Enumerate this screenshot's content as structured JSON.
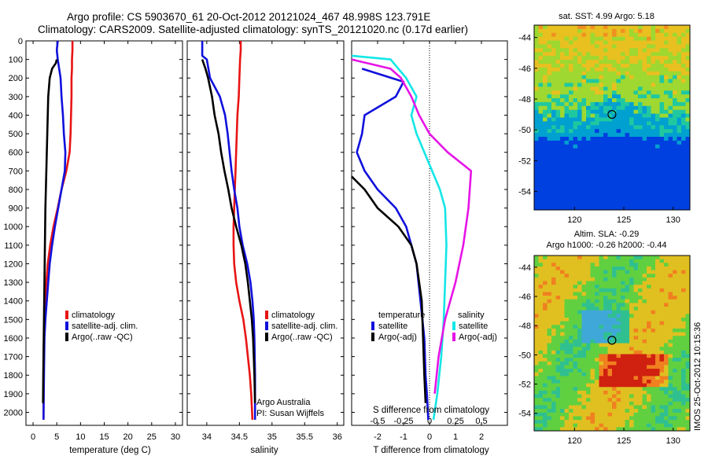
{
  "header": {
    "line1": "Argo profile: CS 5903670_61 20-Oct-2012 20121024_467 48.998S 123.791E",
    "line2": "Climatology: CARS2009. Satellite-adjusted climatology: synTS_20121020.nc (0.17d earlier)"
  },
  "side_text": "IMOS 25-Oct-2012 10:15:36",
  "colors": {
    "climatology": "#e81414",
    "satellite": "#1010dc",
    "argo": "#000000",
    "sal_satellite": "#14e6e6",
    "sal_argo": "#e614e6"
  },
  "chart_data": [
    {
      "id": "temperature",
      "type": "line",
      "xlabel": "temperature (deg C)",
      "ylabel": "",
      "xlim": [
        -1.5,
        31.5
      ],
      "ylim": [
        2070,
        0
      ],
      "xticks": [
        0,
        5,
        10,
        15,
        20,
        25,
        30
      ],
      "yticks": [
        0,
        100,
        200,
        300,
        400,
        500,
        600,
        700,
        800,
        900,
        1000,
        1100,
        1200,
        1300,
        1400,
        1500,
        1600,
        1700,
        1800,
        1900,
        2000
      ],
      "legend": [
        "climatology",
        "satellite-adj. clim.",
        "Argo(..raw -QC)"
      ],
      "series": [
        {
          "name": "climatology",
          "color": "#e81414",
          "x": [
            8.3,
            8.3,
            8.2,
            8.2,
            8.1,
            8.1,
            8.0,
            7.9,
            7.7,
            7.0,
            6.0,
            5.2,
            4.3,
            3.6,
            3.1,
            2.8,
            2.6,
            2.4,
            2.3,
            2.2,
            2.2,
            2.2
          ],
          "y": [
            0,
            50,
            100,
            150,
            200,
            300,
            400,
            500,
            600,
            700,
            800,
            900,
            1000,
            1100,
            1200,
            1300,
            1400,
            1500,
            1600,
            1700,
            1900,
            2040
          ]
        },
        {
          "name": "satellite-adj. clim.",
          "color": "#1010dc",
          "x": [
            5.2,
            5.0,
            5.2,
            5.5,
            5.8,
            6.0,
            6.3,
            6.5,
            6.8,
            6.7,
            6.0,
            5.3,
            4.6,
            4.0,
            3.5,
            3.2,
            2.9,
            2.6,
            2.4,
            2.3,
            2.2
          ],
          "y": [
            0,
            50,
            100,
            150,
            200,
            300,
            400,
            500,
            600,
            700,
            800,
            900,
            1000,
            1100,
            1200,
            1300,
            1400,
            1500,
            1600,
            1800,
            2040
          ]
        },
        {
          "name": "Argo(..raw -QC)",
          "color": "#000000",
          "x": [
            5.0,
            4.8,
            4.0,
            3.5,
            3.2,
            3.1,
            3.0,
            2.9,
            2.8,
            2.7,
            2.6,
            2.55,
            2.5,
            2.45,
            2.4,
            2.35,
            2.3,
            2.25,
            2.2,
            2.15,
            2.1
          ],
          "y": [
            100,
            120,
            150,
            200,
            300,
            400,
            500,
            600,
            700,
            800,
            900,
            1000,
            1100,
            1200,
            1300,
            1400,
            1500,
            1600,
            1700,
            1800,
            1950
          ]
        }
      ]
    },
    {
      "id": "salinity",
      "type": "line",
      "xlabel": "salinity",
      "ylabel": "",
      "xlim": [
        33.7,
        36.1
      ],
      "ylim": [
        2070,
        0
      ],
      "xticks": [
        34,
        34.5,
        35,
        35.5,
        36
      ],
      "xticklabels": [
        "34",
        "34.5",
        "35",
        "35.5",
        "36"
      ],
      "legend": [
        "climatology",
        "satellite-adj. clim.",
        "Argo(..raw -QC)"
      ],
      "annotations": [
        "Argo Australia",
        "PI: Susan Wijffels"
      ],
      "series": [
        {
          "name": "climatology",
          "color": "#e81414",
          "x": [
            34.52,
            34.52,
            34.51,
            34.5,
            34.49,
            34.47,
            34.46,
            34.45,
            34.44,
            34.43,
            34.42,
            34.41,
            34.41,
            34.42,
            34.45,
            34.5,
            34.56,
            34.6,
            34.63,
            34.66,
            34.68,
            34.7
          ],
          "y": [
            0,
            50,
            100,
            200,
            300,
            400,
            500,
            600,
            700,
            800,
            900,
            1000,
            1100,
            1200,
            1300,
            1400,
            1500,
            1600,
            1700,
            1800,
            1900,
            2040
          ]
        },
        {
          "name": "satellite-adj. clim.",
          "color": "#1010dc",
          "x": [
            33.93,
            33.93,
            34.0,
            34.05,
            34.2,
            34.28,
            34.32,
            34.35,
            34.38,
            34.42,
            34.47,
            34.5,
            34.55,
            34.62,
            34.67,
            34.7,
            34.72,
            34.73,
            34.74,
            34.74
          ],
          "y": [
            0,
            80,
            100,
            200,
            300,
            400,
            500,
            600,
            700,
            800,
            900,
            1000,
            1100,
            1200,
            1300,
            1400,
            1500,
            1600,
            1800,
            2040
          ]
        },
        {
          "name": "Argo(..raw -QC)",
          "color": "#000000",
          "x": [
            33.93,
            33.98,
            34.02,
            34.08,
            34.12,
            34.18,
            34.22,
            34.27,
            34.33,
            34.38,
            34.45,
            34.53,
            34.59,
            34.63,
            34.66,
            34.69,
            34.71,
            34.72,
            34.73,
            34.74
          ],
          "y": [
            100,
            150,
            200,
            300,
            400,
            500,
            600,
            700,
            800,
            900,
            1000,
            1100,
            1200,
            1300,
            1400,
            1500,
            1600,
            1700,
            1800,
            1950
          ]
        }
      ]
    },
    {
      "id": "difference",
      "type": "line",
      "xlabel": "T difference from climatology",
      "xlabel2": "S difference from climatology",
      "xlim": [
        -3.0,
        3.0
      ],
      "ylim": [
        2070,
        0
      ],
      "xticks": [
        -2,
        -1,
        0,
        1,
        2
      ],
      "xticks2": [
        -0.5,
        -0.25,
        0,
        0.25,
        0.5
      ],
      "xticklabels2": [
        "-0.5",
        "-0.25",
        "0",
        "0.25",
        "0.5"
      ],
      "legend_titles": [
        "temperature",
        "salinity"
      ],
      "legend": [
        "satellite",
        "Argo(-adj)",
        "satellite",
        "Argo(-adj)"
      ],
      "series": [
        {
          "name": "temperature satellite",
          "color": "#1010dc",
          "x": [
            -2.6,
            -1.0,
            -1.3,
            -2.5,
            -2.6,
            -2.8,
            -2.5,
            -2.0,
            -1.3,
            -0.9,
            -0.5,
            -0.35,
            -0.2,
            -0.15,
            -0.1,
            -0.05
          ],
          "y": [
            150,
            220,
            300,
            400,
            500,
            600,
            700,
            800,
            900,
            1000,
            1200,
            1400,
            1600,
            1800,
            1900,
            2040
          ]
        },
        {
          "name": "temperature Argo(-adj)",
          "color": "#000000",
          "x": [
            -3.0,
            -2.5,
            -2.0,
            -1.2,
            -0.7,
            -0.5,
            -0.4,
            -0.3,
            -0.25,
            -0.2,
            -0.15
          ],
          "y": [
            730,
            800,
            900,
            1000,
            1100,
            1200,
            1300,
            1400,
            1600,
            1800,
            1950
          ]
        },
        {
          "name": "salinity satellite",
          "color": "#14e6e6",
          "x": [
            -3.0,
            -1.5,
            -0.9,
            -0.5,
            -0.7,
            -0.5,
            -0.2,
            0.1,
            0.4,
            0.6,
            0.65,
            0.6,
            0.55,
            0.45,
            0.3,
            0.15
          ],
          "y": [
            80,
            100,
            200,
            300,
            400,
            500,
            600,
            700,
            800,
            900,
            1100,
            1300,
            1500,
            1700,
            1900,
            2040
          ]
        },
        {
          "name": "salinity Argo(-adj)",
          "color": "#e614e6",
          "x": [
            -3.0,
            -1.5,
            -1.1,
            -0.7,
            -0.4,
            0.0,
            0.7,
            1.6,
            1.5,
            1.3,
            1.0,
            0.6,
            0.35,
            0.2
          ],
          "y": [
            100,
            150,
            200,
            300,
            400,
            500,
            600,
            700,
            900,
            1100,
            1300,
            1500,
            1700,
            1900
          ]
        }
      ]
    },
    {
      "id": "sst_map",
      "type": "heatmap",
      "title": "sat. SST: 4.99  Argo: 5.18",
      "xticks": [
        120,
        125,
        130
      ],
      "yticks": [
        -44,
        -46,
        -48,
        -50,
        -52,
        -54
      ],
      "marker": {
        "lon": 123.791,
        "lat": -48.998
      }
    },
    {
      "id": "sla_map",
      "type": "heatmap",
      "title": "Altim. SLA: -0.29",
      "subtitle": "Argo h1000: -0.26  h2000: -0.44",
      "xticks": [
        120,
        125,
        130
      ],
      "yticks": [
        -44,
        -46,
        -48,
        -50,
        -52,
        -54
      ],
      "marker": {
        "lon": 123.791,
        "lat": -48.998
      }
    }
  ]
}
